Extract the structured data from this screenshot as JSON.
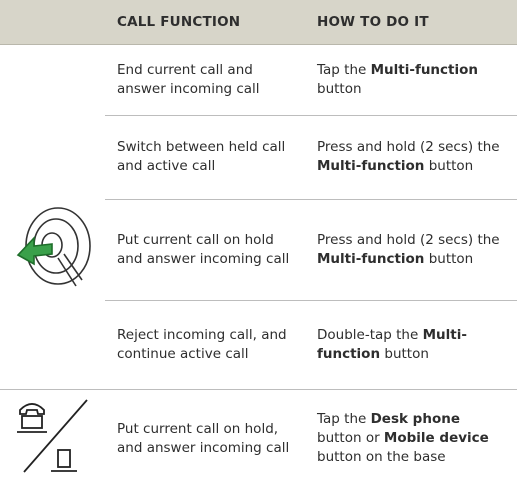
{
  "table": {
    "header": [
      "CALL FUNCTION",
      "HOW TO DO IT"
    ],
    "rows": [
      {
        "function": "End current call and answer incoming call",
        "how": [
          {
            "text": "Tap the "
          },
          {
            "text": "Multi-function",
            "bold": true
          },
          {
            "text": " button"
          }
        ]
      },
      {
        "function": "Switch between held call and active call",
        "how": [
          {
            "text": "Press and hold (2 secs) the "
          },
          {
            "text": "Multi-function",
            "bold": true
          },
          {
            "text": " button"
          }
        ]
      },
      {
        "function": "Put current call on hold and answer incoming call",
        "how": [
          {
            "text": "Press and hold (2 secs) the "
          },
          {
            "text": "Multi-function",
            "bold": true
          },
          {
            "text": " button"
          }
        ]
      },
      {
        "function": "Reject incoming call, and continue active call",
        "how": [
          {
            "text": "Double-tap the "
          },
          {
            "text": "Multi-function",
            "bold": true
          },
          {
            "text": " button"
          }
        ]
      },
      {
        "function": "Put current call on hold, and answer incoming call",
        "how": [
          {
            "text": "Tap the "
          },
          {
            "text": "Desk phone",
            "bold": true
          },
          {
            "text": " button or "
          },
          {
            "text": "Mobile device",
            "bold": true
          },
          {
            "text": " button on the base"
          }
        ]
      }
    ]
  }
}
